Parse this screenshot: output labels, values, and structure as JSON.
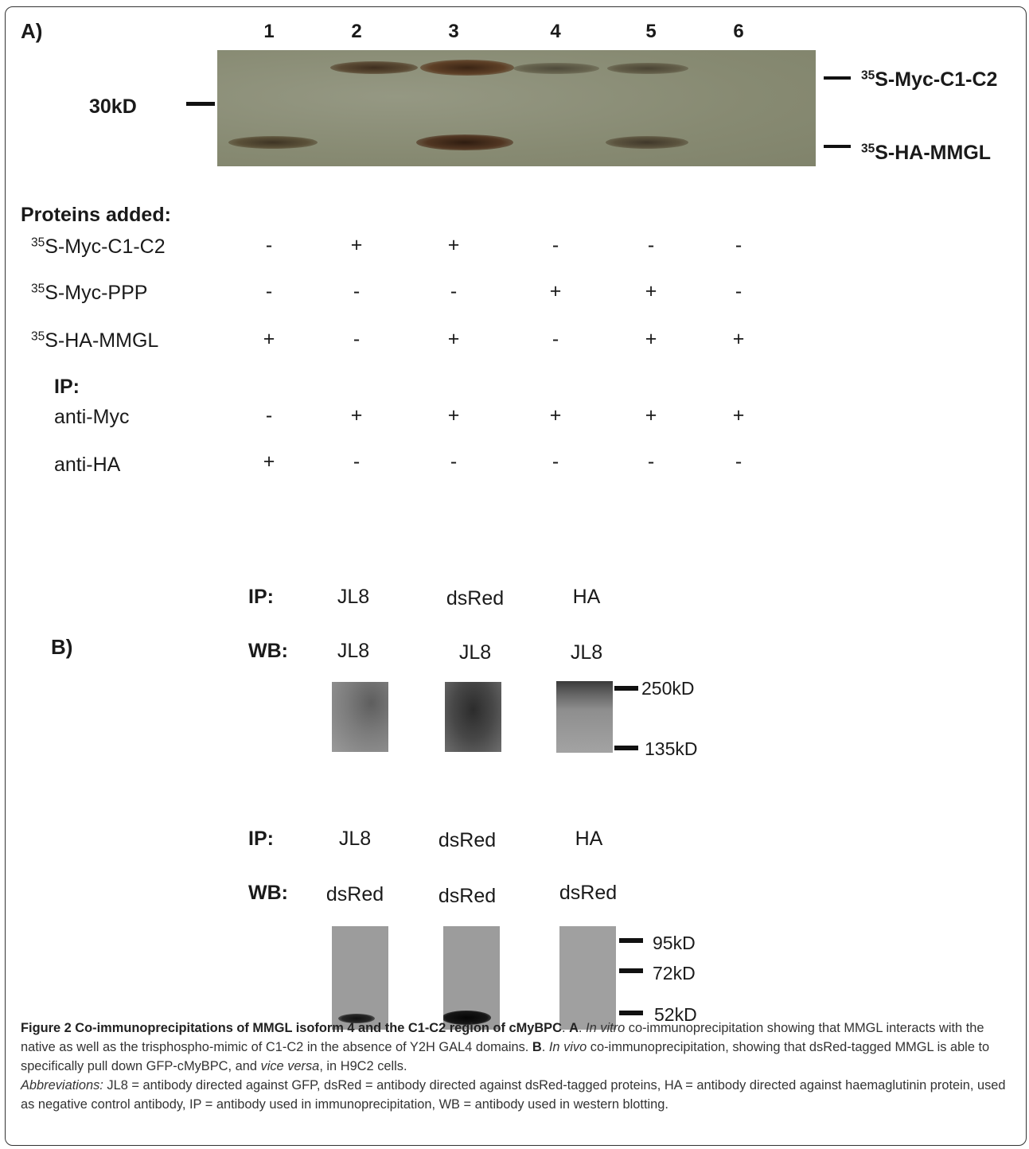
{
  "panel_a": {
    "label": "A)",
    "lanes": [
      "1",
      "2",
      "3",
      "4",
      "5",
      "6"
    ],
    "marker_left": "30kD",
    "band_label_top": {
      "sup": "35",
      "text": "S-Myc-C1-C2"
    },
    "band_label_bottom": {
      "sup": "35",
      "text": "S-HA-MMGL"
    },
    "proteins_header": "Proteins added:",
    "rows": [
      {
        "sup": "35",
        "label": "S-Myc-C1-C2",
        "values": [
          "-",
          "+",
          "+",
          "-",
          "-",
          "-"
        ]
      },
      {
        "sup": "35",
        "label": "S-Myc-PPP",
        "values": [
          "-",
          "-",
          "-",
          "+",
          "+",
          "-"
        ]
      },
      {
        "sup": "35",
        "label": "S-HA-MMGL",
        "values": [
          "+",
          "-",
          "+",
          "-",
          "+",
          "+"
        ]
      }
    ],
    "ip_header": "IP:",
    "ip_rows": [
      {
        "label": "anti-Myc",
        "values": [
          "-",
          "+",
          "+",
          "+",
          "+",
          "+"
        ]
      },
      {
        "label": "anti-HA",
        "values": [
          "+",
          "-",
          "-",
          "-",
          "-",
          "-"
        ]
      }
    ]
  },
  "panel_b": {
    "label": "B)",
    "block1": {
      "ip_label": "IP:",
      "ip_values": [
        "JL8",
        "dsRed",
        "HA"
      ],
      "wb_label": "WB:",
      "wb_values": [
        "JL8",
        "JL8",
        "JL8"
      ],
      "markers": [
        "250kD",
        "135kD"
      ]
    },
    "block2": {
      "ip_label": "IP:",
      "ip_values": [
        "JL8",
        "dsRed",
        "HA"
      ],
      "wb_label": "WB:",
      "wb_values": [
        "dsRed",
        "dsRed",
        "dsRed"
      ],
      "markers": [
        "95kD",
        "72kD",
        "52kD"
      ]
    }
  },
  "caption": {
    "title": "Figure 2 Co-immunoprecipitations of MMGL isoform 4 and the C1-C2 region of cMyBPC",
    "a_label": "A",
    "a_italic": "In vitro",
    "a_text": " co-immunoprecipitation showing that MMGL interacts with the native as well as the trisphospho-mimic of C1-C2 in the absence of Y2H GAL4 domains. ",
    "b_label": "B",
    "b_italic": "In vivo",
    "b_text1": " co-immunoprecipitation, showing that dsRed-tagged MMGL is able to specifically pull down GFP-cMyBPC, and ",
    "b_italic2": "vice versa",
    "b_text2": ", in H9C2 cells.",
    "abbr_label": "Abbreviations:",
    "abbr_text": " JL8 = antibody directed against GFP, dsRed = antibody directed against dsRed-tagged proteins, HA = antibody directed against haemaglutinin protein, used as negative control antibody, IP = antibody used in immunoprecipitation, WB = antibody used in western blotting."
  }
}
